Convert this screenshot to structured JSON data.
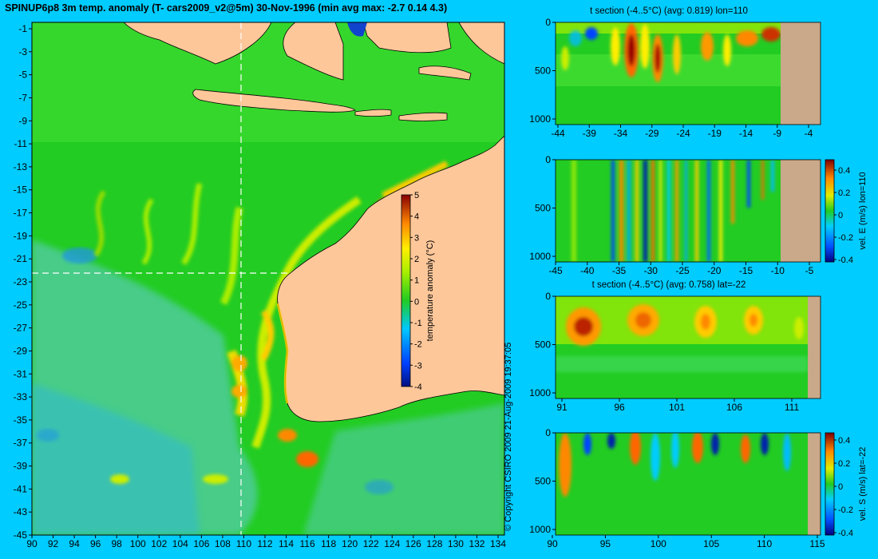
{
  "title": "SPINUP6p8 3m temp. anomaly (T- cars2009_v2@5m) 30-Nov-1996 (min avg max: -2.7 0.14 4.3)",
  "copyright": "© Copyright CSIRO 2009   21-Aug-2009 19:37:05",
  "colors": {
    "background": "#00ccff",
    "land": "#fdc79a",
    "section_land": "#c9a98a",
    "ocean_base": "#22cc22"
  },
  "chart_data": [
    {
      "type": "heatmap",
      "id": "map",
      "x_ticks": [
        "90",
        "92",
        "94",
        "96",
        "98",
        "100",
        "102",
        "104",
        "106",
        "108",
        "110",
        "112",
        "114",
        "116",
        "118",
        "120",
        "122",
        "124",
        "126",
        "128",
        "130",
        "132",
        "134"
      ],
      "y_ticks": [
        "-1",
        "-3",
        "-5",
        "-7",
        "-9",
        "-11",
        "-13",
        "-15",
        "-17",
        "-19",
        "-21",
        "-23",
        "-25",
        "-27",
        "-29",
        "-31",
        "-33",
        "-35",
        "-37",
        "-39",
        "-41",
        "-43",
        "-45"
      ],
      "xlim": [
        90,
        135
      ],
      "ylim": [
        -45,
        0.5
      ],
      "section_lon": 110,
      "section_lat": -22,
      "colorbar": {
        "label": "temperature anomaly (°C)",
        "ticks": [
          "5",
          "4",
          "3",
          "2",
          "1",
          "0",
          "-1",
          "-2",
          "-3",
          "-4"
        ],
        "range": [
          -4,
          5
        ]
      }
    },
    {
      "type": "heatmap",
      "id": "tsec-lon",
      "title": "t section (-4..5°C) (avg: 0.819) lon=110",
      "x_ticks": [
        "-44",
        "-39",
        "-34",
        "-29",
        "-24",
        "-19",
        "-14",
        "-9",
        "-4"
      ],
      "y_ticks": [
        "0",
        "500",
        "1000"
      ]
    },
    {
      "type": "heatmap",
      "id": "vel-e",
      "x_ticks": [
        "-45",
        "-40",
        "-35",
        "-30",
        "-25",
        "-20",
        "-15",
        "-10",
        "-5"
      ],
      "y_ticks": [
        "0",
        "500",
        "1000"
      ],
      "colorbar": {
        "label": "vel. E (m/s) lon=110",
        "ticks": [
          "0.4",
          "0.2",
          "0",
          "-0.2",
          "-0.4"
        ]
      }
    },
    {
      "type": "heatmap",
      "id": "tsec-lat",
      "title": "t section (-4..5°C) (avg: 0.758) lat=-22",
      "x_ticks": [
        "91",
        "96",
        "101",
        "106",
        "111"
      ],
      "y_ticks": [
        "0",
        "500",
        "1000"
      ]
    },
    {
      "type": "heatmap",
      "id": "vel-s",
      "x_ticks": [
        "90",
        "95",
        "100",
        "105",
        "110",
        "115"
      ],
      "y_ticks": [
        "0",
        "500",
        "1000"
      ],
      "colorbar": {
        "label": "vel. S (m/s) lat=-22",
        "ticks": [
          "0.4",
          "0.2",
          "0",
          "-0.2",
          "-0.4"
        ]
      }
    }
  ]
}
